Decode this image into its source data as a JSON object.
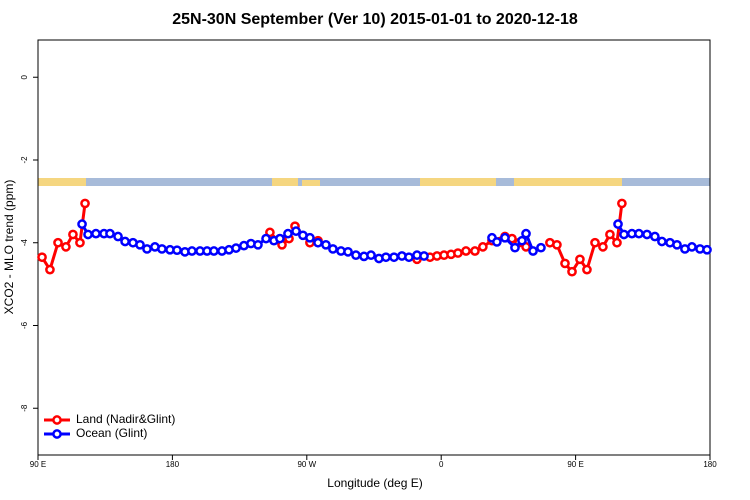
{
  "chart_data": {
    "type": "line",
    "title": "25N-30N September (Ver 10)   2015-01-01 to 2020-12-18",
    "x_label": "Longitude (deg E)",
    "y_label": "XCO2 - MLO trend (ppm)",
    "xlim": [
      90,
      540
    ],
    "ylim": [
      -9.13,
      0.9
    ],
    "xticks": [
      {
        "value": 90,
        "label": "90 E"
      },
      180,
      {
        "value": 270,
        "label": "90 W"
      },
      {
        "value": 360,
        "label": "0"
      },
      {
        "value": 450,
        "label": "90 E"
      },
      {
        "value": 540,
        "label": "180"
      }
    ],
    "yticks": [
      0,
      -2,
      -4,
      -6,
      -8
    ],
    "legend": "bottom-left",
    "series": [
      {
        "name": "Land (Nadir&Glint)",
        "color": "#ff0000",
        "x": [
          92.7,
          98.0,
          103.4,
          108.7,
          113.4,
          118.1,
          121.5,
          null,
          245.3,
          253.4,
          258.1,
          262.1,
          272.1,
          277.5,
          null,
          343.8,
          352.5,
          357.2,
          361.9,
          366.6,
          371.2,
          376.6,
          382.6,
          387.9,
          394.0,
          402.7,
          407.4,
          412.1,
          416.8,
          null,
          432.8,
          437.5,
          442.9,
          447.6,
          452.9,
          457.6,
          463.0,
          468.3,
          473.0,
          477.7,
          481.0
        ],
        "values": [
          -4.35,
          -4.65,
          -4.0,
          -4.1,
          -3.8,
          -4.0,
          -3.05,
          null,
          -3.75,
          -4.05,
          -3.9,
          -3.6,
          -4.0,
          -3.95,
          null,
          -4.4,
          -4.35,
          -4.32,
          -4.3,
          -4.28,
          -4.25,
          -4.2,
          -4.2,
          -4.1,
          -3.95,
          -3.85,
          -3.9,
          -4.0,
          -4.1,
          null,
          -4.0,
          -4.05,
          -4.5,
          -4.7,
          -4.4,
          -4.65,
          -4.0,
          -4.1,
          -3.8,
          -4.0,
          -3.05
        ]
      },
      {
        "name": "Ocean (Glint)",
        "color": "#0000ff",
        "x": [
          119.5,
          123.5,
          128.8,
          134.2,
          138.2,
          143.6,
          148.3,
          153.6,
          158.3,
          163.0,
          168.3,
          173.0,
          178.4,
          183.1,
          188.4,
          193.1,
          198.5,
          203.2,
          207.8,
          213.2,
          217.9,
          222.6,
          227.9,
          232.6,
          237.3,
          242.7,
          248.0,
          252.0,
          257.4,
          262.8,
          267.4,
          272.1,
          277.5,
          282.8,
          287.5,
          292.9,
          297.6,
          302.9,
          308.3,
          313.0,
          318.3,
          323.0,
          328.4,
          333.7,
          338.4,
          343.8,
          348.5,
          null,
          394.0,
          397.3,
          402.7,
          409.4,
          414.1,
          416.8,
          421.5,
          426.8,
          null,
          478.4,
          482.4,
          487.7,
          492.4,
          497.8,
          503.1,
          507.8,
          513.2,
          517.9,
          523.2,
          527.9,
          533.3,
          538.0
        ],
        "values": [
          -3.55,
          -3.8,
          -3.78,
          -3.78,
          -3.78,
          -3.85,
          -3.97,
          -4.0,
          -4.05,
          -4.15,
          -4.1,
          -4.15,
          -4.17,
          -4.18,
          -4.22,
          -4.2,
          -4.2,
          -4.2,
          -4.2,
          -4.2,
          -4.17,
          -4.13,
          -4.07,
          -4.02,
          -4.05,
          -3.9,
          -3.95,
          -3.9,
          -3.78,
          -3.72,
          -3.82,
          -3.88,
          -4.0,
          -4.05,
          -4.15,
          -4.2,
          -4.22,
          -4.3,
          -4.33,
          -4.3,
          -4.38,
          -4.35,
          -4.35,
          -4.32,
          -4.35,
          -4.3,
          -4.32,
          null,
          -3.88,
          -3.98,
          -3.88,
          -4.12,
          -3.95,
          -3.78,
          -4.2,
          -4.12,
          null,
          -3.55,
          -3.8,
          -3.78,
          -3.78,
          -3.8,
          -3.85,
          -3.97,
          -4.0,
          -4.05,
          -4.15,
          -4.1,
          -4.15,
          -4.17
        ]
      }
    ]
  }
}
